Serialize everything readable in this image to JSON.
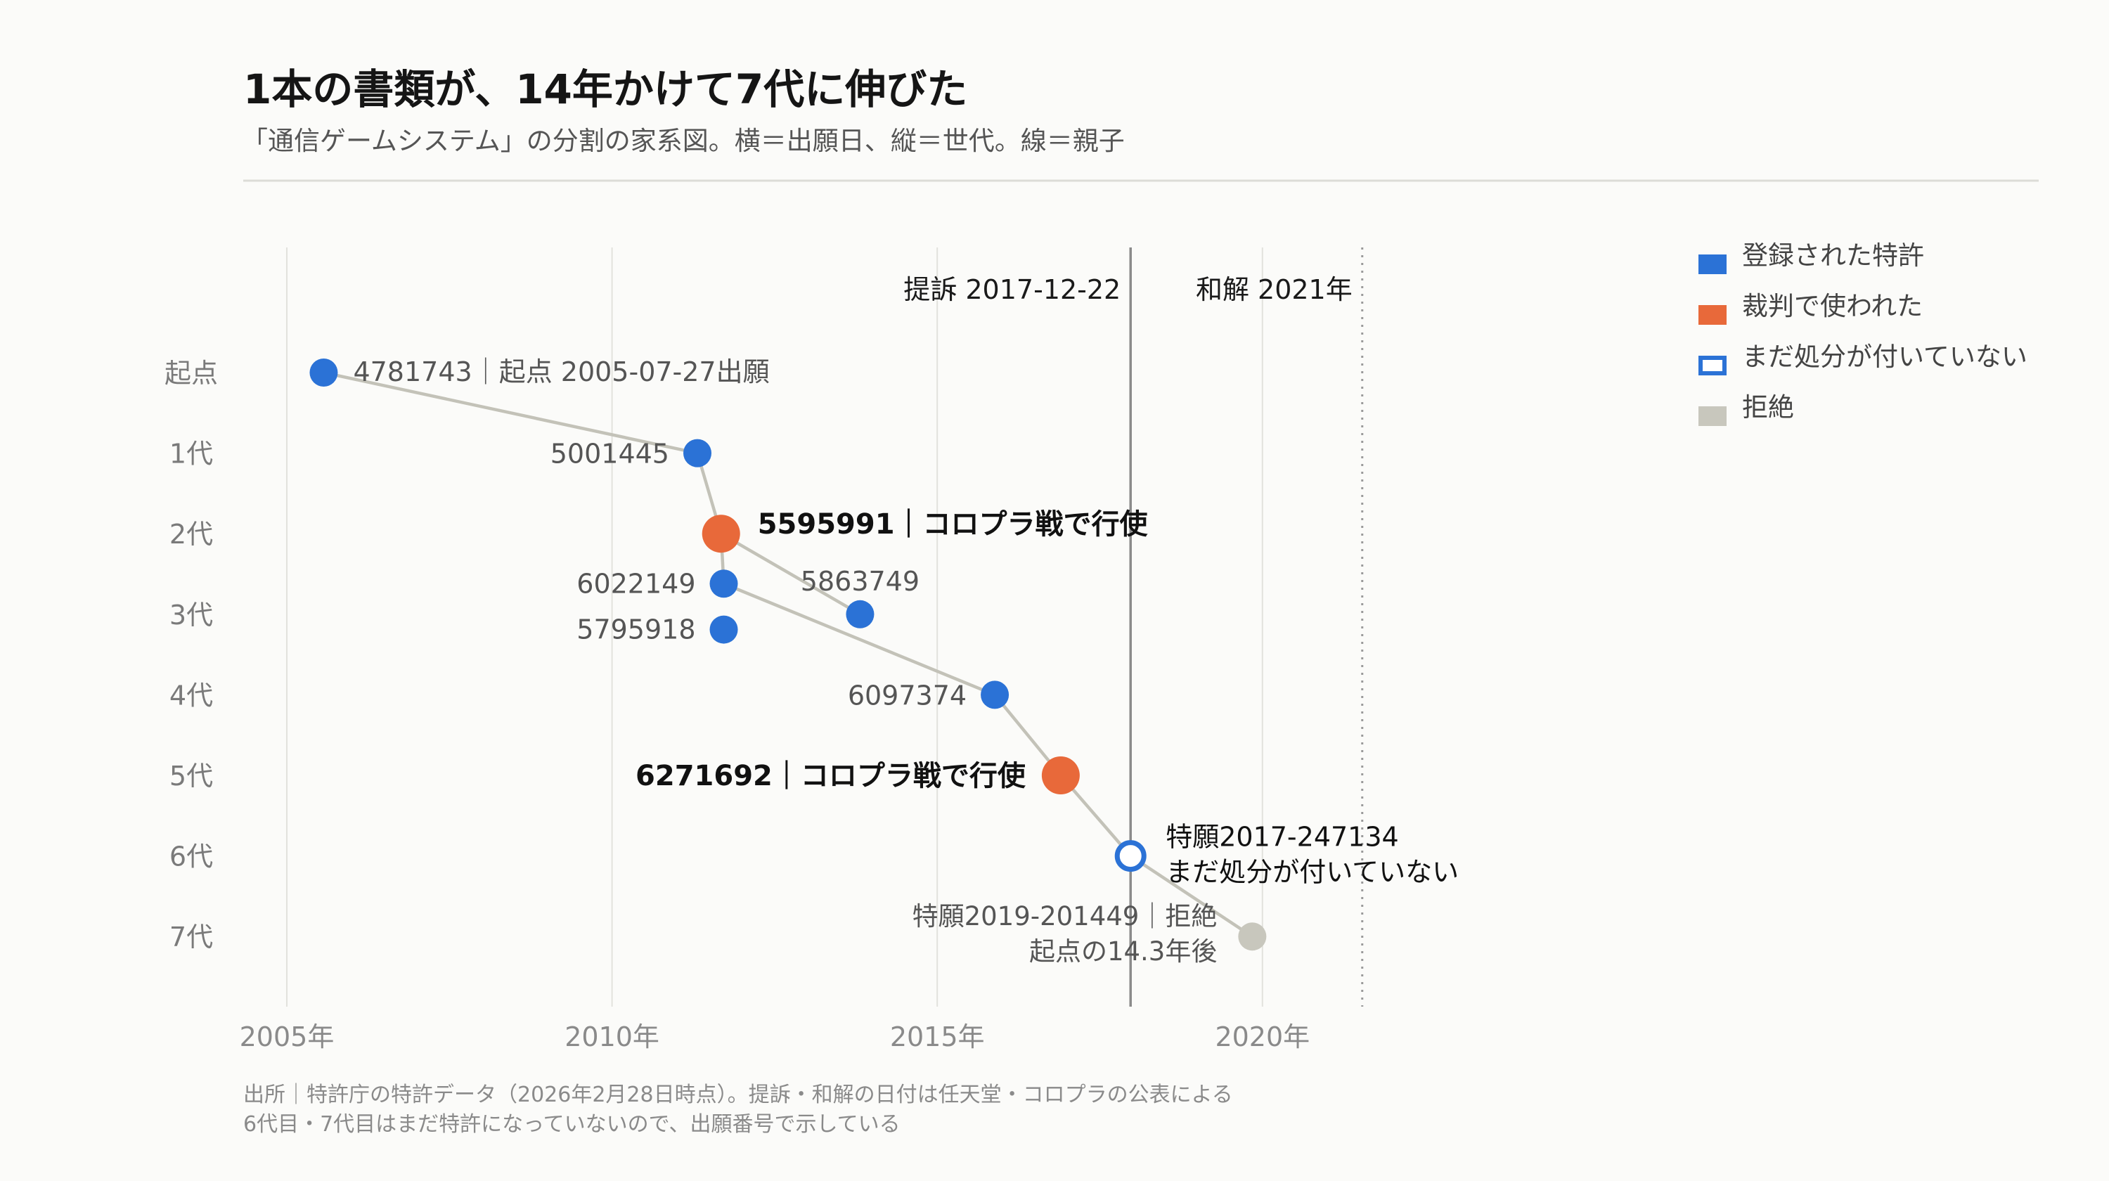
{
  "title": "1本の書類が、14年かけて7代に伸びた",
  "subtitle": "「通信ゲームシステム」の分割の家系図。横＝出願日、縦＝世代。線＝親子",
  "footnotes": [
    "出所｜特許庁の特許データ（2026年2月28日時点）。提訴・和解の日付は任天堂・コロプラの公表による",
    "6代目・7代目はまだ特許になっていないので、出願番号で示している"
  ],
  "colors": {
    "granted": "#2b72d6",
    "used_in_litigation": "#e8693a",
    "pending": "#2b72d6",
    "rejected": "#c8c7bd",
    "link": "#c3c2b8",
    "grid": "#e2e2dd",
    "event_line": "#8a8a8a"
  },
  "chart_data": {
    "type": "scatter",
    "x_axis": {
      "type": "date",
      "range": [
        "2003-11-01",
        "2025-09-01"
      ],
      "ticks": [
        {
          "value": 2005,
          "label": "2005年"
        },
        {
          "value": 2010,
          "label": "2010年"
        },
        {
          "value": 2015,
          "label": "2015年"
        },
        {
          "value": 2020,
          "label": "2020年"
        }
      ],
      "grid": true
    },
    "y_axis": {
      "type": "category",
      "categories": [
        "起点",
        "1代",
        "2代",
        "3代",
        "4代",
        "5代",
        "6代",
        "7代"
      ]
    },
    "legend": {
      "position": "top-right",
      "items": [
        {
          "label": "登録された特許",
          "status": "granted",
          "marker": "filled"
        },
        {
          "label": "裁判で使われた",
          "status": "used_in_litigation",
          "marker": "filled"
        },
        {
          "label": "まだ処分が付いていない",
          "status": "pending",
          "marker": "hollow"
        },
        {
          "label": "拒絶",
          "status": "rejected",
          "marker": "filled"
        }
      ]
    },
    "events": [
      {
        "label": "提訴 2017-12-22",
        "date": "2017-12-22",
        "style": "solid"
      },
      {
        "label": "和解 2021年",
        "date": "2021-07-15",
        "style": "dotted"
      }
    ],
    "nodes": [
      {
        "id": "4781743",
        "date": "2005-07-27",
        "generation": 0,
        "status": "granted",
        "label": "4781743｜起点 2005-07-27出願"
      },
      {
        "id": "5001445",
        "date": "2011-04-25",
        "generation": 1,
        "status": "granted",
        "label": "5001445"
      },
      {
        "id": "5595991",
        "date": "2011-09-05",
        "generation": 2,
        "status": "used_in_litigation",
        "label": "5595991｜コロプラ戦で行使"
      },
      {
        "id": "6022149",
        "date": "2011-09-20",
        "generation": 3,
        "offset": -0.38,
        "status": "granted",
        "label": "6022149"
      },
      {
        "id": "5795918",
        "date": "2011-09-20",
        "generation": 3,
        "offset": 0.19,
        "status": "granted",
        "label": "5795918"
      },
      {
        "id": "5863749",
        "date": "2013-10-25",
        "generation": 3,
        "status": "granted",
        "label": "5863749"
      },
      {
        "id": "6097374",
        "date": "2015-11-20",
        "generation": 4,
        "status": "granted",
        "label": "6097374"
      },
      {
        "id": "6271692",
        "date": "2016-11-25",
        "generation": 5,
        "status": "used_in_litigation",
        "label": "6271692｜コロプラ戦で行使"
      },
      {
        "id": "特願2017-247134",
        "date": "2017-12-22",
        "generation": 6,
        "status": "pending",
        "label": [
          "特願2017-247134",
          "まだ処分が付いていない"
        ]
      },
      {
        "id": "特願2019-201449",
        "date": "2019-11-05",
        "generation": 7,
        "status": "rejected",
        "label": [
          "特願2019-201449｜拒絶",
          "起点の14.3年後"
        ]
      }
    ],
    "links": [
      [
        "4781743",
        "5001445"
      ],
      [
        "5001445",
        "5595991"
      ],
      [
        "5595991",
        "5863749"
      ],
      [
        "5595991",
        "6022149"
      ],
      [
        "6022149",
        "6097374"
      ],
      [
        "6097374",
        "6271692"
      ],
      [
        "6271692",
        "特願2017-247134"
      ],
      [
        "特願2017-247134",
        "特願2019-201449"
      ]
    ]
  }
}
